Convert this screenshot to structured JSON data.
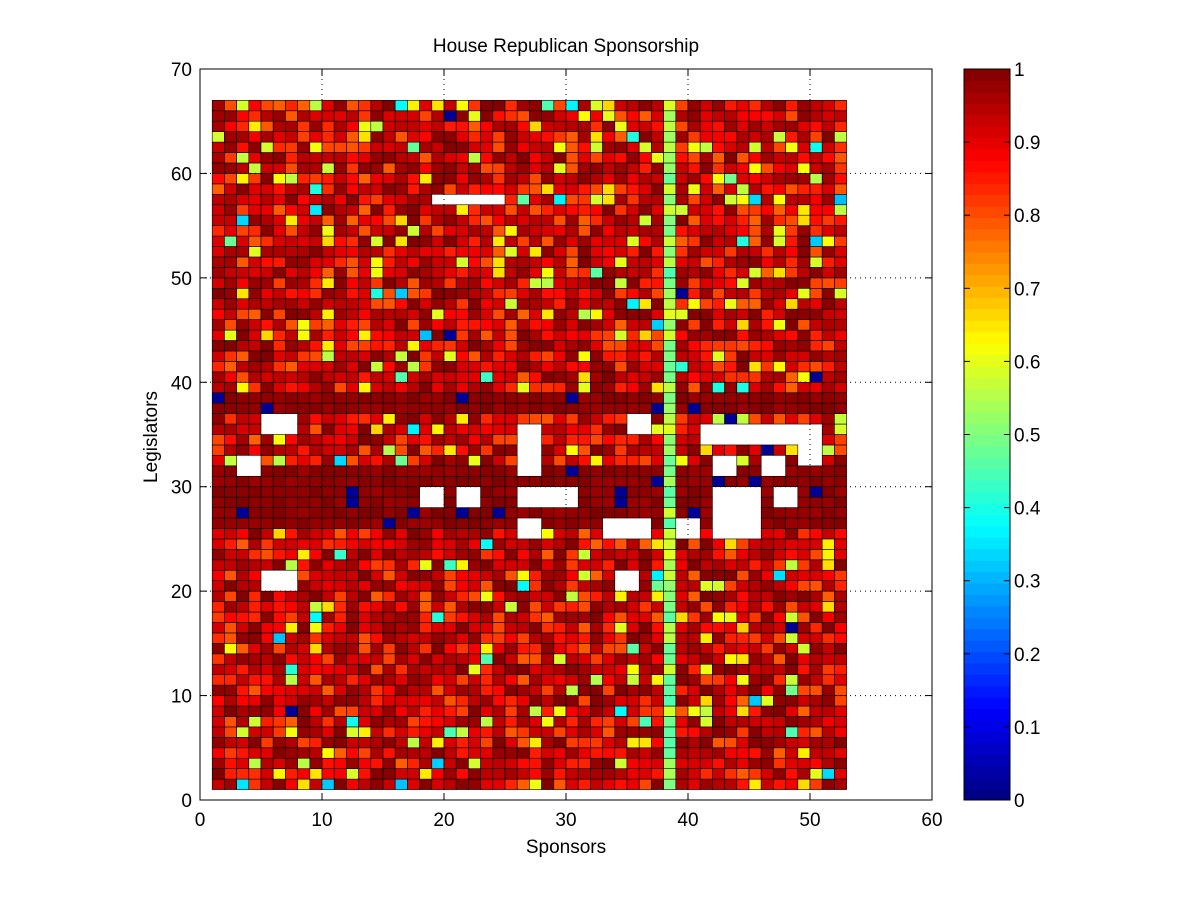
{
  "chart_data": {
    "type": "heatmap",
    "title": "House Republican Sponsorship",
    "xlabel": "Sponsors",
    "ylabel": "Legislators",
    "xlim": [
      0,
      60
    ],
    "ylim": [
      0,
      70
    ],
    "x_ticks": [
      "0",
      "10",
      "20",
      "30",
      "40",
      "50",
      "60"
    ],
    "y_ticks": [
      "0",
      "10",
      "20",
      "30",
      "40",
      "50",
      "60",
      "70"
    ],
    "grid": "dotted",
    "colormap": "jet",
    "colorbar": {
      "range": [
        0,
        1
      ],
      "ticks": [
        "0",
        "0.1",
        "0.2",
        "0.3",
        "0.4",
        "0.5",
        "0.6",
        "0.7",
        "0.8",
        "0.9",
        "1"
      ]
    },
    "cells_x_range": [
      1,
      53
    ],
    "cells_y_range": [
      1,
      67
    ],
    "cell_edge_color": "#000000",
    "value_distribution": "Most cells fall between 0.75 and 1.0 (dark red to orange); scattered cells near 0.55-0.65 (yellow), a few near 0.3-0.5 (cyan/green), a few near 0.0-0.05 (dark blue); white cells are missing values.",
    "column_38_values_range": [
      0.45,
      0.6
    ],
    "rows_with_dark_bands": [
      26,
      27,
      28,
      29,
      30,
      31,
      37,
      38
    ],
    "blank_regions": [
      {
        "x": [
          19,
          25
        ],
        "y": [
          57,
          58
        ]
      },
      {
        "x": [
          5,
          8
        ],
        "y": [
          35,
          37
        ]
      },
      {
        "x": [
          3,
          5
        ],
        "y": [
          31,
          33
        ]
      },
      {
        "x": [
          5,
          8
        ],
        "y": [
          20,
          22
        ]
      },
      {
        "x": [
          18,
          20
        ],
        "y": [
          28,
          30
        ]
      },
      {
        "x": [
          21,
          23
        ],
        "y": [
          28,
          30
        ]
      },
      {
        "x": [
          26,
          31
        ],
        "y": [
          28,
          30
        ]
      },
      {
        "x": [
          26,
          28
        ],
        "y": [
          31,
          36
        ]
      },
      {
        "x": [
          26,
          28
        ],
        "y": [
          25,
          27
        ]
      },
      {
        "x": [
          33,
          37
        ],
        "y": [
          25,
          27
        ]
      },
      {
        "x": [
          35,
          37
        ],
        "y": [
          35,
          37
        ]
      },
      {
        "x": [
          34,
          36
        ],
        "y": [
          20,
          22
        ]
      },
      {
        "x": [
          39,
          41
        ],
        "y": [
          25,
          27
        ]
      },
      {
        "x": [
          41,
          51
        ],
        "y": [
          34,
          36
        ]
      },
      {
        "x": [
          42,
          46
        ],
        "y": [
          25,
          30
        ]
      },
      {
        "x": [
          47,
          49
        ],
        "y": [
          28,
          30
        ]
      },
      {
        "x": [
          42,
          44
        ],
        "y": [
          31,
          33
        ]
      },
      {
        "x": [
          46,
          48
        ],
        "y": [
          31,
          33
        ]
      },
      {
        "x": [
          49,
          51
        ],
        "y": [
          32,
          34
        ]
      }
    ]
  }
}
